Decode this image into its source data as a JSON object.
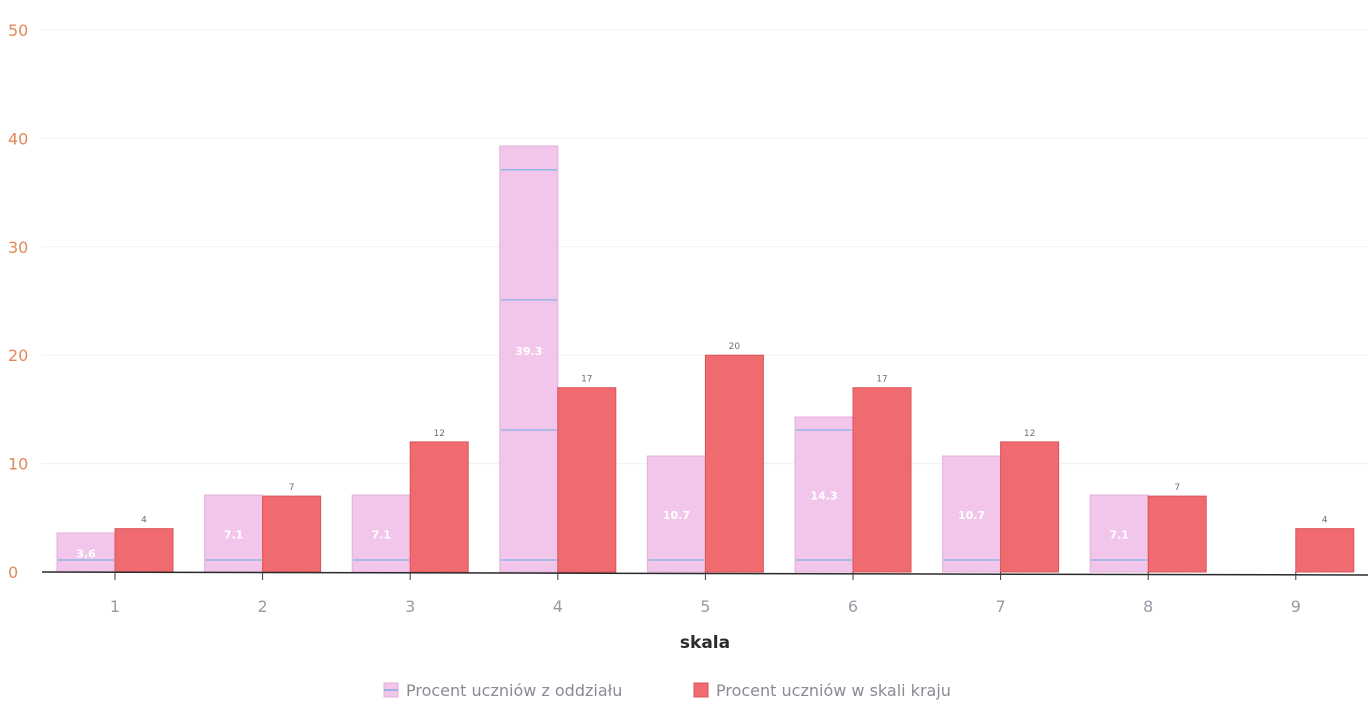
{
  "chart_data": {
    "type": "bar",
    "title": "",
    "xlabel": "skala",
    "ylabel": "",
    "categories": [
      "1",
      "2",
      "3",
      "4",
      "5",
      "6",
      "7",
      "8",
      "9"
    ],
    "ylim": [
      0,
      50
    ],
    "yticks": [
      "0",
      "10",
      "20",
      "30",
      "40",
      "50"
    ],
    "grid": true,
    "legend_position": "bottom-center",
    "series": [
      {
        "name": "Procent uczniów z oddziału",
        "color": "#f2c6ea",
        "values": [
          3.6,
          7.1,
          7.1,
          39.3,
          10.7,
          14.3,
          10.7,
          7.1,
          0
        ],
        "labels": [
          "3.6",
          "7.1",
          "7.1",
          "39.3",
          "10.7",
          "14.3",
          "10.7",
          "7.1",
          ""
        ]
      },
      {
        "name": "Procent uczniów w skali kraju",
        "color": "#f06b70",
        "values": [
          4,
          7,
          12,
          17,
          20,
          17,
          12,
          7,
          4
        ],
        "labels": [
          "4",
          "7",
          "12",
          "17",
          "20",
          "17",
          "12",
          "7",
          "4"
        ]
      }
    ]
  }
}
